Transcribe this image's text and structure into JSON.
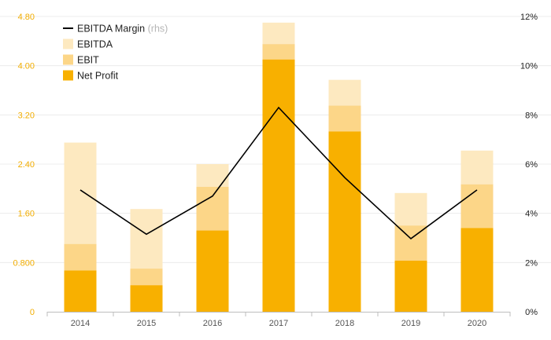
{
  "chart_data": {
    "type": "bar",
    "stacking": "overlay",
    "categories": [
      "2014",
      "2015",
      "2016",
      "2017",
      "2018",
      "2019",
      "2020"
    ],
    "series": [
      {
        "name": "EBITDA",
        "color": "#fde9c0",
        "values": [
          2.75,
          1.67,
          2.4,
          4.7,
          3.77,
          1.93,
          2.62
        ]
      },
      {
        "name": "EBIT",
        "color": "#fcd688",
        "values": [
          1.1,
          0.7,
          2.03,
          4.35,
          3.35,
          1.4,
          2.07
        ]
      },
      {
        "name": "Net Profit",
        "color": "#f8b000",
        "values": [
          0.67,
          0.43,
          1.32,
          4.1,
          2.93,
          0.83,
          1.36
        ]
      }
    ],
    "line_series": {
      "name": "EBITDA Margin",
      "axis": "right",
      "color": "#000000",
      "values": [
        4.95,
        3.15,
        4.7,
        8.3,
        5.45,
        2.97,
        4.95
      ]
    },
    "legend_suffix": "(rhs)",
    "y_left": {
      "ylim": [
        0,
        4.8
      ],
      "ticks": [
        0,
        0.8,
        1.6,
        2.4,
        3.2,
        4.0,
        4.8
      ],
      "tick_labels": [
        "0",
        "0.800",
        "1.60",
        "2.40",
        "3.20",
        "4.00",
        "4.80"
      ],
      "color": "#f2ad00"
    },
    "y_right": {
      "ylim": [
        0,
        12
      ],
      "ticks": [
        0,
        2,
        4,
        6,
        8,
        10,
        12
      ],
      "tick_labels": [
        "0%",
        "2%",
        "4%",
        "6%",
        "8%",
        "10%",
        "12%"
      ],
      "color": "#222222"
    },
    "grid": true,
    "legend_position": "top-left"
  }
}
